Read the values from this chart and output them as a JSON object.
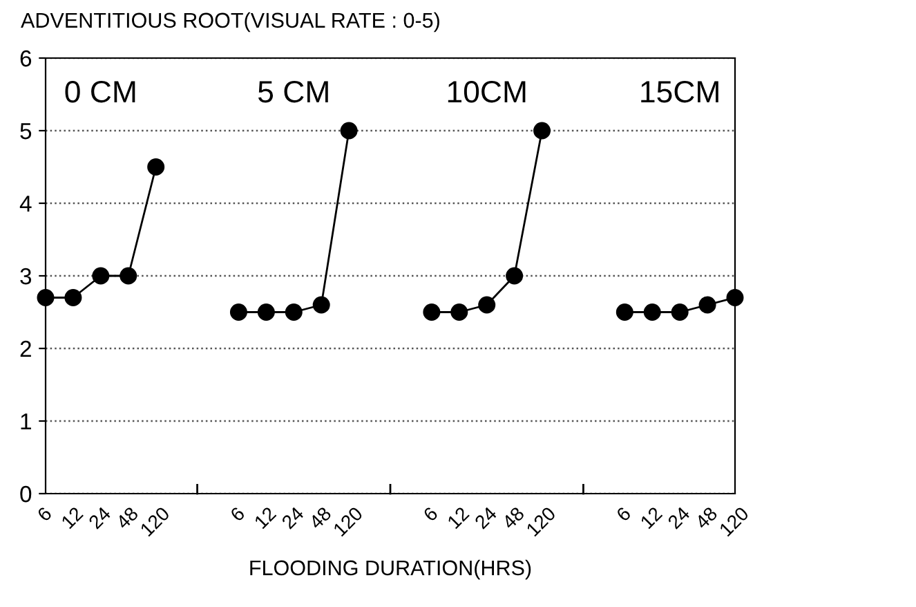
{
  "chart_data": {
    "type": "line",
    "ylabel": "ADVENTITIOUS ROOT(VISUAL RATE : 0-5)",
    "xlabel": "FLOODING DURATION(HRS)",
    "categories": [
      "6",
      "12",
      "24",
      "48",
      "120",
      null,
      null,
      "6",
      "12",
      "24",
      "48",
      "120",
      null,
      null,
      "6",
      "12",
      "24",
      "48",
      "120",
      null,
      null,
      "6",
      "12",
      "24",
      "48",
      "120"
    ],
    "series": [
      {
        "color": "#000000",
        "values": [
          2.7,
          2.7,
          3.0,
          3.0,
          4.5,
          null,
          null,
          2.5,
          2.5,
          2.5,
          2.6,
          5.0,
          null,
          null,
          2.5,
          2.5,
          2.6,
          3.0,
          5.0,
          null,
          null,
          2.5,
          2.5,
          2.5,
          2.6,
          2.7
        ]
      }
    ],
    "annotations": [
      "0 CM",
      "5 CM",
      "10CM",
      "15CM"
    ],
    "ylim": [
      0,
      6
    ],
    "yticks": [
      0,
      1,
      2,
      3,
      4,
      5,
      6
    ],
    "grid": "y",
    "marker": "circle",
    "line_style": "solid",
    "legend": false
  }
}
